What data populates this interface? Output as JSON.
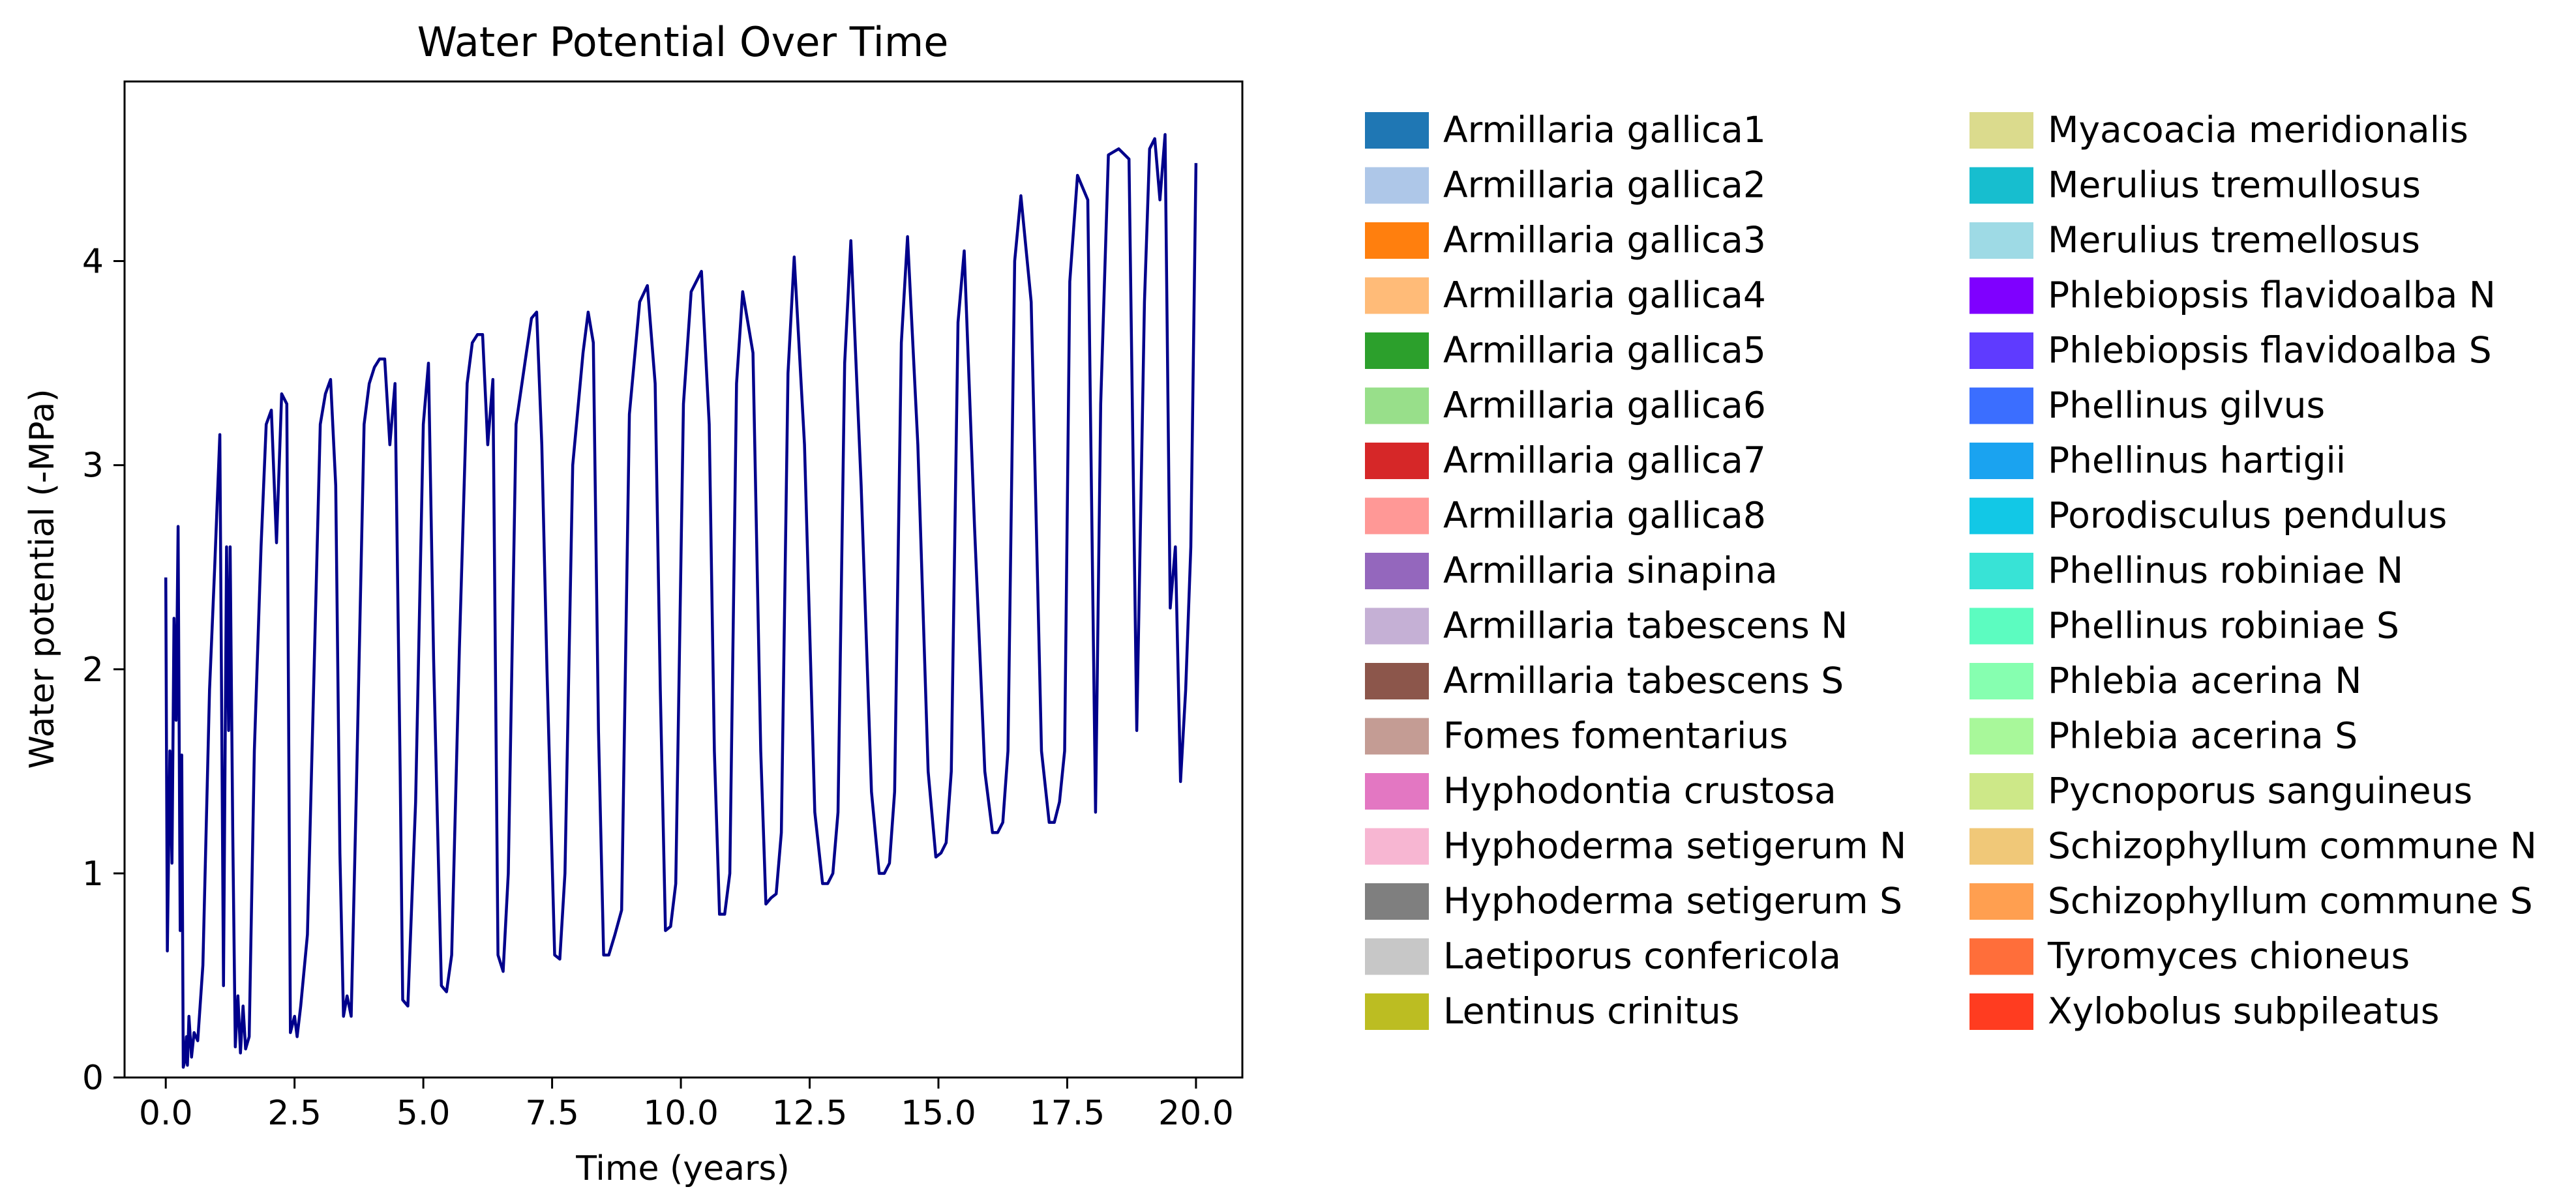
{
  "chart_data": {
    "type": "line",
    "title": "Water Potential Over Time",
    "xlabel": "Time (years)",
    "ylabel": "Water potential (-MPa)",
    "xlim": [
      -0.8,
      20.9
    ],
    "ylim": [
      0,
      4.88
    ],
    "x_ticks": [
      0.0,
      2.5,
      5.0,
      7.5,
      10.0,
      12.5,
      15.0,
      17.5,
      20.0
    ],
    "x_tick_labels": [
      "0.0",
      "2.5",
      "5.0",
      "7.5",
      "10.0",
      "12.5",
      "15.0",
      "17.5",
      "20.0"
    ],
    "y_ticks": [
      0,
      1,
      2,
      3,
      4
    ],
    "y_tick_labels": [
      "0",
      "1",
      "2",
      "3",
      "4"
    ],
    "grid": false,
    "line_color": "#00008b",
    "series": [
      {
        "x": [
          0.0,
          0.03,
          0.08,
          0.12,
          0.16,
          0.2,
          0.24,
          0.28,
          0.31,
          0.34,
          0.37,
          0.4,
          0.42,
          0.45,
          0.5,
          0.55,
          0.62,
          0.72,
          0.85,
          0.95,
          1.05,
          1.12,
          1.18,
          1.22,
          1.25,
          1.3,
          1.35,
          1.4,
          1.45,
          1.5,
          1.55,
          1.62,
          1.72,
          1.85,
          1.95,
          2.05,
          2.15,
          2.25,
          2.35,
          2.42,
          2.5,
          2.55,
          2.62,
          2.75,
          2.9,
          3.0,
          3.1,
          3.2,
          3.3,
          3.38,
          3.45,
          3.52,
          3.6,
          3.7,
          3.85,
          3.95,
          4.05,
          4.15,
          4.25,
          4.35,
          4.45,
          4.55,
          4.6,
          4.7,
          4.85,
          5.0,
          5.1,
          5.2,
          5.28,
          5.35,
          5.45,
          5.55,
          5.7,
          5.85,
          5.95,
          6.05,
          6.15,
          6.25,
          6.35,
          6.45,
          6.55,
          6.65,
          6.8,
          7.0,
          7.1,
          7.2,
          7.3,
          7.4,
          7.55,
          7.65,
          7.75,
          7.9,
          8.1,
          8.2,
          8.3,
          8.4,
          8.5,
          8.6,
          8.72,
          8.85,
          9.0,
          9.2,
          9.35,
          9.5,
          9.6,
          9.7,
          9.8,
          9.9,
          10.05,
          10.2,
          10.4,
          10.55,
          10.65,
          10.75,
          10.85,
          10.95,
          11.08,
          11.2,
          11.4,
          11.55,
          11.65,
          11.75,
          11.85,
          11.95,
          12.08,
          12.2,
          12.4,
          12.6,
          12.75,
          12.85,
          12.95,
          13.05,
          13.18,
          13.3,
          13.5,
          13.7,
          13.85,
          13.95,
          14.05,
          14.15,
          14.28,
          14.4,
          14.6,
          14.8,
          14.95,
          15.05,
          15.15,
          15.25,
          15.38,
          15.5,
          15.7,
          15.9,
          16.05,
          16.15,
          16.25,
          16.35,
          16.48,
          16.6,
          16.8,
          17.0,
          17.15,
          17.25,
          17.35,
          17.45,
          17.55,
          17.7,
          17.9,
          18.05,
          18.15,
          18.3,
          18.5,
          18.7,
          18.85,
          19.0,
          19.1,
          19.2,
          19.3,
          19.4,
          19.5,
          19.6,
          19.7,
          19.8,
          19.9,
          20.0
        ],
        "y": [
          2.45,
          0.62,
          1.6,
          1.05,
          2.25,
          1.75,
          2.7,
          0.72,
          1.58,
          0.05,
          0.08,
          0.2,
          0.06,
          0.3,
          0.1,
          0.22,
          0.18,
          0.55,
          1.9,
          2.5,
          3.15,
          0.45,
          2.6,
          1.7,
          2.6,
          1.2,
          0.15,
          0.4,
          0.12,
          0.35,
          0.14,
          0.2,
          1.6,
          2.6,
          3.2,
          3.27,
          2.62,
          3.35,
          3.3,
          0.22,
          0.3,
          0.2,
          0.35,
          0.7,
          2.2,
          3.2,
          3.35,
          3.42,
          2.9,
          1.1,
          0.3,
          0.4,
          0.3,
          1.4,
          3.2,
          3.4,
          3.48,
          3.52,
          3.52,
          3.1,
          3.4,
          1.5,
          0.38,
          0.35,
          1.35,
          3.2,
          3.5,
          2.05,
          1.2,
          0.45,
          0.42,
          0.6,
          2.1,
          3.4,
          3.6,
          3.64,
          3.64,
          3.1,
          3.42,
          0.6,
          0.52,
          1.0,
          3.2,
          3.55,
          3.72,
          3.75,
          3.1,
          2.0,
          0.6,
          0.58,
          1.0,
          3.0,
          3.55,
          3.75,
          3.6,
          1.7,
          0.6,
          0.6,
          0.7,
          0.82,
          3.25,
          3.8,
          3.88,
          3.4,
          1.9,
          0.72,
          0.74,
          0.95,
          3.3,
          3.85,
          3.95,
          3.2,
          1.6,
          0.8,
          0.8,
          1.0,
          3.4,
          3.85,
          3.55,
          1.6,
          0.85,
          0.88,
          0.9,
          1.2,
          3.45,
          4.02,
          3.1,
          1.3,
          0.95,
          0.95,
          1.0,
          1.3,
          3.5,
          4.1,
          2.9,
          1.4,
          1.0,
          1.0,
          1.05,
          1.4,
          3.6,
          4.12,
          3.1,
          1.5,
          1.08,
          1.1,
          1.15,
          1.5,
          3.7,
          4.05,
          2.7,
          1.5,
          1.2,
          1.2,
          1.25,
          1.6,
          4.0,
          4.32,
          3.8,
          1.6,
          1.25,
          1.25,
          1.35,
          1.6,
          3.9,
          4.42,
          4.3,
          1.3,
          3.3,
          4.52,
          4.55,
          4.5,
          1.7,
          3.8,
          4.55,
          4.6,
          4.3,
          4.62,
          2.3,
          2.6,
          1.45,
          1.9,
          2.6,
          4.48
        ]
      }
    ],
    "legend": {
      "placement": "right",
      "entries": [
        {
          "label": "Armillaria gallica1",
          "color": "#1f77b4"
        },
        {
          "label": "Armillaria gallica2",
          "color": "#aec7e8"
        },
        {
          "label": "Armillaria gallica3",
          "color": "#ff7f0e"
        },
        {
          "label": "Armillaria gallica4",
          "color": "#ffbb78"
        },
        {
          "label": "Armillaria gallica5",
          "color": "#2ca02c"
        },
        {
          "label": "Armillaria gallica6",
          "color": "#98df8a"
        },
        {
          "label": "Armillaria gallica7",
          "color": "#d62728"
        },
        {
          "label": "Armillaria gallica8",
          "color": "#ff9896"
        },
        {
          "label": "Armillaria sinapina",
          "color": "#9467bd"
        },
        {
          "label": "Armillaria tabescens N",
          "color": "#c5b0d5"
        },
        {
          "label": "Armillaria tabescens S",
          "color": "#8c564b"
        },
        {
          "label": "Fomes fomentarius",
          "color": "#c49c94"
        },
        {
          "label": "Hyphodontia crustosa",
          "color": "#e377c2"
        },
        {
          "label": "Hyphoderma setigerum N",
          "color": "#f7b6d2"
        },
        {
          "label": "Hyphoderma setigerum S",
          "color": "#7f7f7f"
        },
        {
          "label": "Laetiporus confericola",
          "color": "#c7c7c7"
        },
        {
          "label": "Lentinus crinitus",
          "color": "#bcbd22"
        },
        {
          "label": "Myacoacia meridionalis",
          "color": "#dbdb8d"
        },
        {
          "label": "Merulius tremullosus",
          "color": "#17becf"
        },
        {
          "label": "Merulius tremellosus",
          "color": "#9edae5"
        },
        {
          "label": "Phlebiopsis flavidoalba N",
          "color": "#7f00ff"
        },
        {
          "label": "Phlebiopsis flavidoalba S",
          "color": "#5f3bff"
        },
        {
          "label": "Phellinus gilvus",
          "color": "#3b6eff"
        },
        {
          "label": "Phellinus hartigii",
          "color": "#1aa3f0"
        },
        {
          "label": "Porodisculus pendulus",
          "color": "#12c8e6"
        },
        {
          "label": "Phellinus robiniae N",
          "color": "#38e3d6"
        },
        {
          "label": "Phellinus robiniae S",
          "color": "#5cfcc0"
        },
        {
          "label": "Phlebia acerina N",
          "color": "#86ffb0"
        },
        {
          "label": "Phlebia acerina S",
          "color": "#a8f89a"
        },
        {
          "label": "Pycnoporus sanguineus",
          "color": "#cde888"
        },
        {
          "label": "Schizophyllum commune N",
          "color": "#f0c878"
        },
        {
          "label": "Schizophyllum commune S",
          "color": "#ff9f50"
        },
        {
          "label": "Tyromyces chioneus",
          "color": "#ff6e3a"
        },
        {
          "label": "Xylobolus subpileatus",
          "color": "#ff3c20"
        }
      ]
    }
  }
}
